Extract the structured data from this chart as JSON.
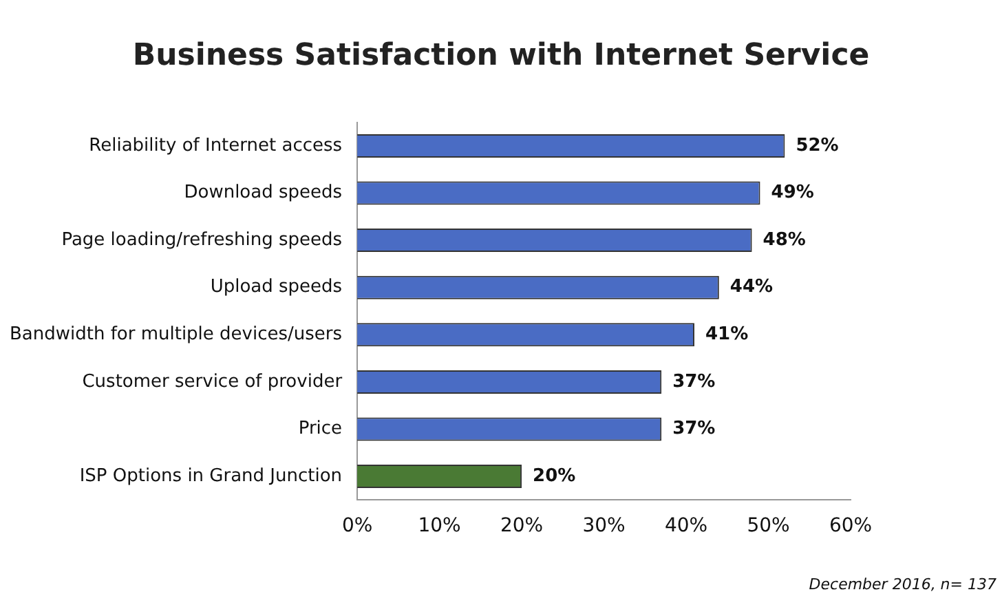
{
  "chart_data": {
    "type": "bar",
    "orientation": "horizontal",
    "title": "Business Satisfaction with Internet Service",
    "categories": [
      "Reliability of Internet access",
      "Download speeds",
      "Page loading/refreshing speeds",
      "Upload speeds",
      "Bandwidth for multiple devices/users",
      "Customer service of provider",
      "Price",
      "ISP Options in Grand Junction"
    ],
    "values": [
      52,
      49,
      48,
      44,
      41,
      37,
      37,
      20
    ],
    "colors": [
      "#4a6cc4",
      "#4a6cc4",
      "#4a6cc4",
      "#4a6cc4",
      "#4a6cc4",
      "#4a6cc4",
      "#4a6cc4",
      "#4a7a34"
    ],
    "value_labels": [
      "52%",
      "49%",
      "48%",
      "44%",
      "41%",
      "37%",
      "37%",
      "20%"
    ],
    "xlim": [
      0,
      60
    ],
    "xticks": [
      {
        "value": 0,
        "label": "0%"
      },
      {
        "value": 10,
        "label": "10%"
      },
      {
        "value": 20,
        "label": "20%"
      },
      {
        "value": 30,
        "label": "30%"
      },
      {
        "value": 40,
        "label": "40%"
      },
      {
        "value": 50,
        "label": "50%"
      },
      {
        "value": 60,
        "label": "60%"
      }
    ],
    "grid": false,
    "legend": false,
    "annotations": [
      "December 2016, n= 137"
    ]
  }
}
